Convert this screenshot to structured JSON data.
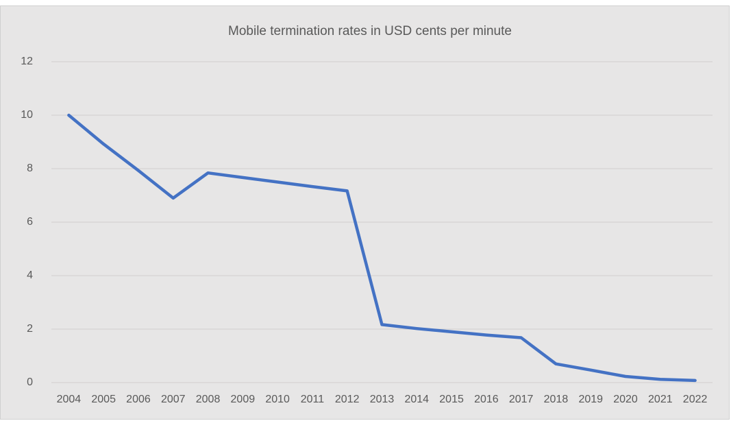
{
  "chart_data": {
    "type": "line",
    "title": "Mobile termination rates in USD cents per minute",
    "categories": [
      "2004",
      "2005",
      "2006",
      "2007",
      "2008",
      "2009",
      "2010",
      "2011",
      "2012",
      "2013",
      "2014",
      "2015",
      "2016",
      "2017",
      "2018",
      "2019",
      "2020",
      "2021",
      "2022"
    ],
    "values": [
      10.0,
      8.92,
      7.93,
      6.9,
      7.84,
      7.67,
      7.5,
      7.33,
      7.17,
      2.17,
      2.02,
      1.9,
      1.78,
      1.68,
      0.7,
      0.47,
      0.23,
      0.12,
      0.08
    ],
    "color": "#4472c4",
    "ylim": [
      0,
      12
    ],
    "yticks": [
      0,
      2,
      4,
      6,
      8,
      10,
      12
    ],
    "grid": true
  }
}
